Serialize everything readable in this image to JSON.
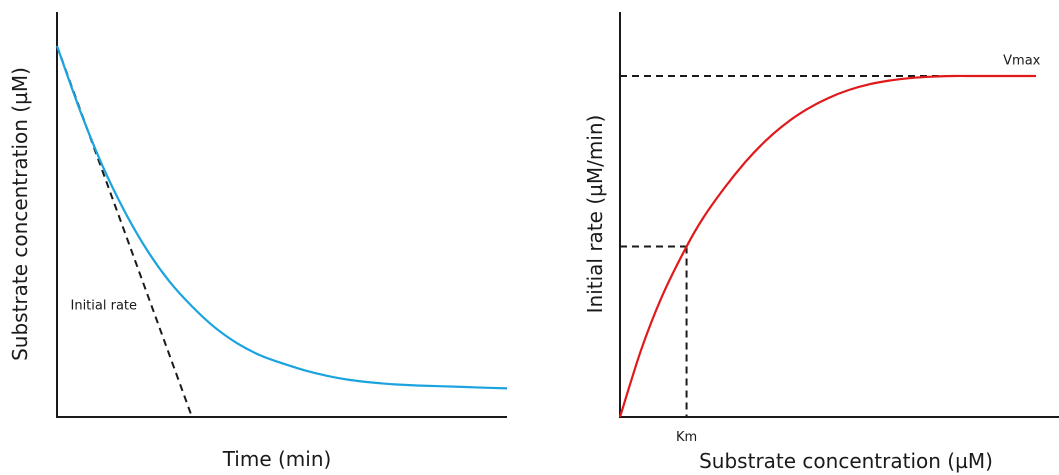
{
  "chart_data": [
    {
      "type": "line",
      "xlabel": "Time (min)",
      "ylabel": "Substrate concentration (µM)",
      "xlim": [
        0,
        100
      ],
      "ylim": [
        0,
        100
      ],
      "series": [
        {
          "color": "#1aa3df",
          "x": [
            0,
            5,
            10,
            15,
            20,
            25,
            30,
            35,
            40,
            45,
            50,
            55,
            60,
            65,
            70,
            75,
            80,
            85,
            90,
            95,
            100
          ],
          "y": [
            100,
            83,
            68,
            55.5,
            45,
            36.5,
            29.8,
            24.2,
            19.9,
            16.7,
            14.5,
            12.6,
            11.1,
            10.0,
            9.3,
            8.8,
            8.5,
            8.3,
            8.1,
            7.9,
            7.7
          ]
        }
      ],
      "annotations": [
        {
          "text": "Initial rate",
          "x": 3,
          "y": 29
        }
      ],
      "tangent": {
        "x": [
          0,
          30
        ],
        "y": [
          100,
          0
        ]
      }
    },
    {
      "type": "line",
      "xlabel": "Substrate concentration (µM)",
      "ylabel": "Initial rate (µM/min)",
      "xlim": [
        0,
        100
      ],
      "ylim": [
        0,
        100
      ],
      "series": [
        {
          "color": "#e0191b",
          "x": [
            0,
            5,
            10,
            16,
            20,
            25,
            30,
            35,
            40,
            45,
            50,
            55,
            60,
            65,
            70,
            75,
            80,
            85,
            90,
            95,
            100
          ],
          "y": [
            0,
            19.4,
            35.1,
            50.0,
            58.4,
            67.0,
            74.6,
            81.0,
            86.2,
            90.3,
            93.5,
            95.9,
            97.6,
            98.7,
            99.4,
            99.8,
            100,
            100,
            100,
            100,
            100
          ]
        }
      ],
      "annotations": [
        {
          "text": "Vmax",
          "x": 96,
          "y": 104
        },
        {
          "text": "Km",
          "x": 16,
          "y": -7
        }
      ],
      "guides": {
        "vmax_y": 100,
        "half_vmax_y": 50,
        "km_x": 16
      }
    }
  ]
}
